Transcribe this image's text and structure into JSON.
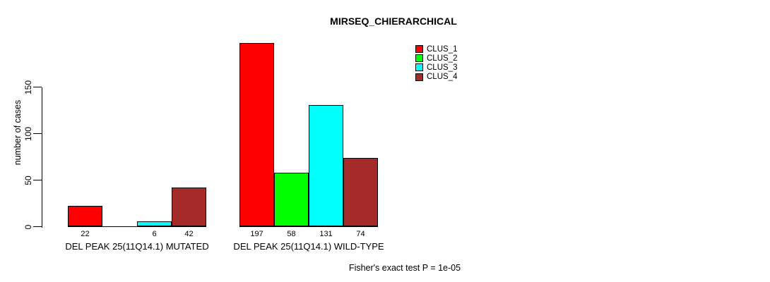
{
  "title": "MIRSEQ_CHIERARCHICAL",
  "footnote": "Fisher's exact test P = 1e-05",
  "chart_data": {
    "type": "bar",
    "title": "MIRSEQ_CHIERARCHICAL",
    "xlabel": "",
    "ylabel": "number of cases",
    "yticks": [
      0,
      50,
      100,
      150
    ],
    "ylim": [
      0,
      198
    ],
    "grid": false,
    "legend_position": "top-right",
    "categories": [
      "DEL PEAK 25(11Q14.1) MUTATED",
      "DEL PEAK 25(11Q14.1) WILD-TYPE"
    ],
    "series": [
      {
        "name": "CLUS_1",
        "color": "#ff0000",
        "values": [
          22,
          197
        ]
      },
      {
        "name": "CLUS_2",
        "color": "#00ff00",
        "values": [
          0,
          58
        ]
      },
      {
        "name": "CLUS_3",
        "color": "#00ffff",
        "values": [
          6,
          131
        ]
      },
      {
        "name": "CLUS_4",
        "color": "#a52a2a",
        "values": [
          42,
          74
        ]
      }
    ],
    "bar_value_labels": [
      [
        "22",
        "",
        "6",
        "42"
      ],
      [
        "197",
        "58",
        "131",
        "74"
      ]
    ],
    "annotation": "Fisher's exact test P = 1e-05"
  }
}
